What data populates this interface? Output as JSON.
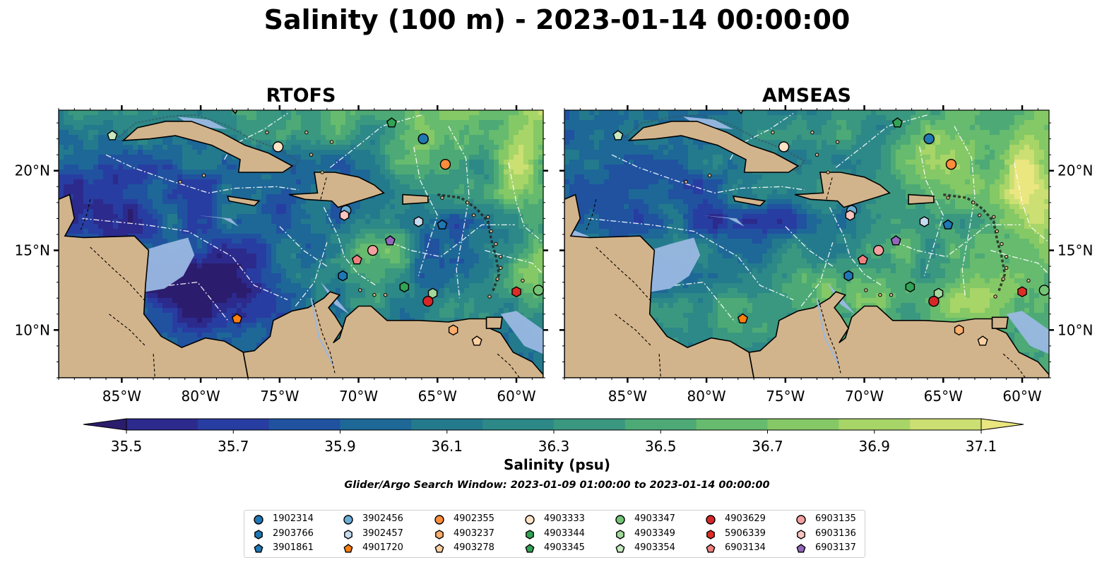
{
  "title": "Salinity (100 m) - 2023-01-14 00:00:00",
  "panels": [
    {
      "title": "RTOFS",
      "variant": "rtofs"
    },
    {
      "title": "AMSEAS",
      "variant": "amseas"
    }
  ],
  "axes": {
    "lon_ticks": [
      "85°W",
      "80°W",
      "75°W",
      "70°W",
      "65°W",
      "60°W"
    ],
    "lon_values": [
      -85,
      -80,
      -75,
      -70,
      -65,
      -60
    ],
    "lat_ticks": [
      "20°N",
      "15°N",
      "10°N"
    ],
    "lat_values": [
      20,
      15,
      10
    ],
    "extent": {
      "lon_min": -89,
      "lon_max": -58.3,
      "lat_min": 7,
      "lat_max": 23.8
    }
  },
  "colorbar": {
    "label": "Salinity (psu)",
    "tick_labels": [
      "35.5",
      "35.7",
      "35.9",
      "36.1",
      "36.3",
      "36.5",
      "36.7",
      "36.9",
      "37.1"
    ],
    "min": 35.4,
    "max": 37.2,
    "colors": [
      "#2b1c6e",
      "#2c2a8c",
      "#283da1",
      "#2052a0",
      "#1d6897",
      "#247a8d",
      "#2d8888",
      "#3a9880",
      "#4daa76",
      "#66bb6e",
      "#85c866",
      "#a8d567",
      "#cbdf73",
      "#eae680"
    ],
    "extend": "both"
  },
  "window_note": "Glider/Argo Search Window: 2023-01-09 01:00:00 to 2023-01-14 00:00:00",
  "map_colors": {
    "land": "#d2b48c",
    "shallow": "#9ab8e2",
    "coast": "#000000"
  },
  "floats": [
    {
      "id": "1902314",
      "marker": "circle",
      "color": "#1f77b4",
      "lon": -65.9,
      "lat": 22.0
    },
    {
      "id": "2903766",
      "marker": "hexagon",
      "color": "#1f77b4",
      "lon": -71.0,
      "lat": 13.4
    },
    {
      "id": "3901861",
      "marker": "pentagon",
      "color": "#1f77b4",
      "lon": -64.7,
      "lat": 16.6
    },
    {
      "id": "3902456",
      "marker": "circle",
      "color": "#6baed6",
      "lon": -70.8,
      "lat": 17.5
    },
    {
      "id": "3902457",
      "marker": "hexagon",
      "color": "#c6dbef",
      "lon": -66.2,
      "lat": 16.8
    },
    {
      "id": "4901720",
      "marker": "pentagon",
      "color": "#fd7f0e",
      "lon": -77.7,
      "lat": 10.7
    },
    {
      "id": "4902355",
      "marker": "circle",
      "color": "#fd8d3c",
      "lon": -64.5,
      "lat": 20.4
    },
    {
      "id": "4903237",
      "marker": "hexagon",
      "color": "#fdae6b",
      "lon": -64.0,
      "lat": 10.0
    },
    {
      "id": "4903278",
      "marker": "pentagon",
      "color": "#fdd0a2",
      "lon": -62.5,
      "lat": 9.3
    },
    {
      "id": "4903333",
      "marker": "circle",
      "color": "#fde3c7",
      "lon": -75.1,
      "lat": 21.5
    },
    {
      "id": "4903344",
      "marker": "hexagon",
      "color": "#31a354",
      "lon": -67.1,
      "lat": 12.7
    },
    {
      "id": "4903345",
      "marker": "pentagon",
      "color": "#31a354",
      "lon": -67.9,
      "lat": 23.0
    },
    {
      "id": "4903347",
      "marker": "circle",
      "color": "#74c476",
      "lon": -58.6,
      "lat": 12.5
    },
    {
      "id": "4903349",
      "marker": "hexagon",
      "color": "#a1d99b",
      "lon": -65.3,
      "lat": 12.3
    },
    {
      "id": "4903354",
      "marker": "pentagon",
      "color": "#c7e9c0",
      "lon": -85.6,
      "lat": 22.2
    },
    {
      "id": "4903629",
      "marker": "circle",
      "color": "#d62728",
      "lon": -65.6,
      "lat": 11.8
    },
    {
      "id": "5906339",
      "marker": "hexagon",
      "color": "#de2d26",
      "lon": -60.0,
      "lat": 12.4
    },
    {
      "id": "6903134",
      "marker": "pentagon",
      "color": "#f08080",
      "lon": -70.1,
      "lat": 14.4
    },
    {
      "id": "6903135",
      "marker": "circle",
      "color": "#f4a0a0",
      "lon": -69.1,
      "lat": 15.0
    },
    {
      "id": "6903136",
      "marker": "hexagon",
      "color": "#fcc5c0",
      "lon": -70.9,
      "lat": 17.2
    },
    {
      "id": "6903137",
      "marker": "pentagon",
      "color": "#9467bd",
      "lon": -68.0,
      "lat": 15.6
    }
  ]
}
